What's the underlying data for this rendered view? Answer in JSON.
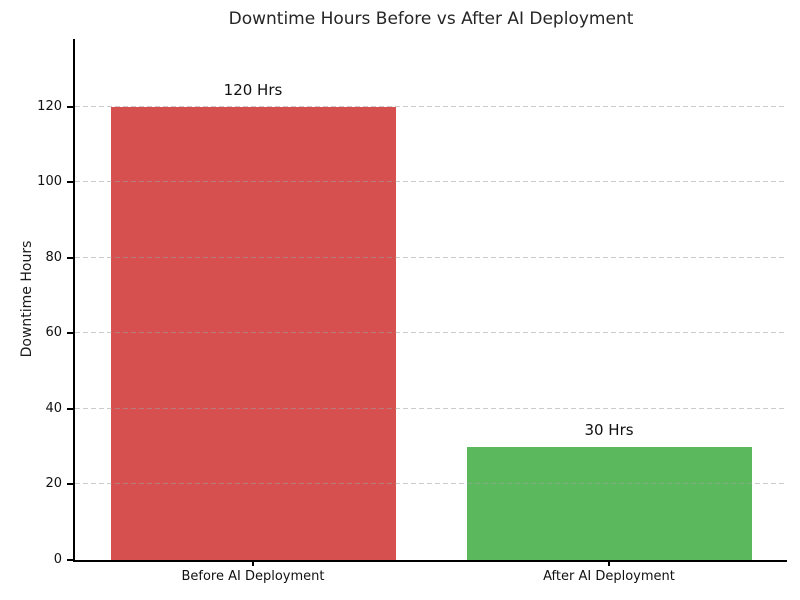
{
  "page": {
    "background": "#ffffff"
  },
  "chart_data": {
    "type": "bar",
    "title": "Downtime Hours Before vs After AI Deployment",
    "xlabel": "",
    "ylabel": "Downtime Hours",
    "categories": [
      "Before AI Deployment",
      "After AI Deployment"
    ],
    "values": [
      120,
      30
    ],
    "bar_labels": [
      "120 Hrs",
      "30 Hrs"
    ],
    "bar_colors": [
      "#d6504f",
      "#5cb85c"
    ],
    "yticks": [
      0,
      20,
      40,
      60,
      80,
      100,
      120
    ],
    "ylim": [
      0,
      138
    ],
    "grid": "horizontal-dashed",
    "grid_color": "#c9c9c9",
    "spine_color": "#000000",
    "legend": "none"
  }
}
